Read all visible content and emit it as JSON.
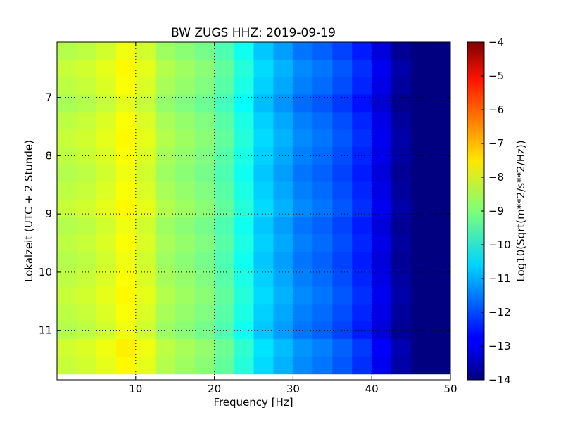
{
  "chart_data": {
    "type": "heatmap",
    "title": "BW ZUGS HHZ: 2019-09-19",
    "xlabel": "Frequency [Hz]",
    "ylabel": "Lokalzeit (UTC + 2 Stunde)",
    "xlim": [
      0,
      50
    ],
    "ylim": [
      6.05,
      11.85
    ],
    "y_inverted": true,
    "x_ticks": [
      10,
      20,
      30,
      40,
      50
    ],
    "y_ticks": [
      7,
      8,
      9,
      10,
      11
    ],
    "grid": true,
    "grid_style": "dotted",
    "colormap": "jet",
    "colorbar": {
      "label": "Log10(Sqrt(m**2/s**2/Hz))",
      "range": [
        -14,
        -4
      ],
      "ticks": [
        -14,
        -13,
        -12,
        -11,
        -10,
        -9,
        -8,
        -7,
        -6,
        -5,
        -4
      ],
      "placement": "right"
    },
    "frequency_bins_hz": [
      0,
      2.5,
      5,
      7.5,
      10,
      12.5,
      15,
      17.5,
      20,
      22.5,
      25,
      27.5,
      30,
      32.5,
      35,
      37.5,
      40,
      42.5,
      45,
      47.5,
      50
    ],
    "mean_log_amplitude": [
      -8.6,
      -8.5,
      -8.3,
      -8.0,
      -8.3,
      -8.8,
      -9.0,
      -9.2,
      -9.6,
      -10.2,
      -10.9,
      -11.3,
      -11.7,
      -11.9,
      -12.2,
      -12.6,
      -13.2,
      -13.9,
      -14.0,
      -14.0,
      -14.0
    ],
    "time_hours": [
      6.2,
      6.5,
      6.8,
      7.1,
      7.4,
      7.7,
      8.0,
      8.3,
      8.6,
      8.9,
      9.2,
      9.5,
      9.8,
      10.1,
      10.4,
      10.7,
      11.0,
      11.3,
      11.6
    ],
    "time_offset_log_amplitude": [
      0.1,
      0.3,
      0.2,
      0.0,
      0.2,
      0.3,
      0.2,
      0.1,
      0.2,
      0.3,
      0.1,
      0.2,
      0.1,
      0.2,
      0.3,
      0.2,
      0.1,
      0.4,
      0.3
    ]
  }
}
